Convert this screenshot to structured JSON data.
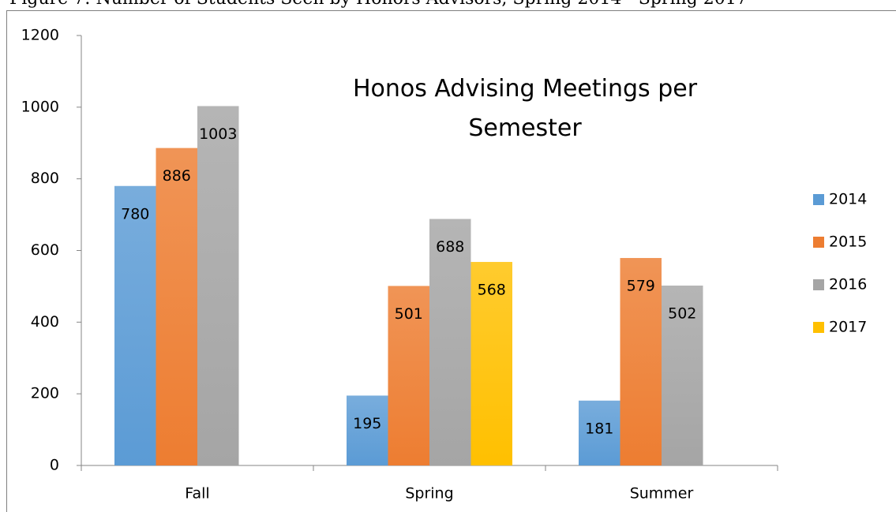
{
  "caption": "Figure 7: Number of Students Seen by Honors Advisors, Spring 2014 - Spring 2017",
  "chart_data": {
    "type": "bar",
    "title": "Honos Advising Meetings per Semester",
    "categories": [
      "Fall",
      "Spring",
      "Summer"
    ],
    "series": [
      {
        "name": "2014",
        "color": "#5b9bd5",
        "values": [
          780,
          195,
          181
        ]
      },
      {
        "name": "2015",
        "color": "#ed7d31",
        "values": [
          886,
          501,
          579
        ]
      },
      {
        "name": "2016",
        "color": "#a5a5a5",
        "values": [
          1003,
          688,
          502
        ]
      },
      {
        "name": "2017",
        "color": "#ffc000",
        "values": [
          null,
          568,
          null
        ]
      }
    ],
    "ylim": [
      0,
      1200
    ],
    "yticks": [
      0,
      200,
      400,
      600,
      800,
      1000,
      1200
    ],
    "grid": false,
    "legend": "right"
  }
}
